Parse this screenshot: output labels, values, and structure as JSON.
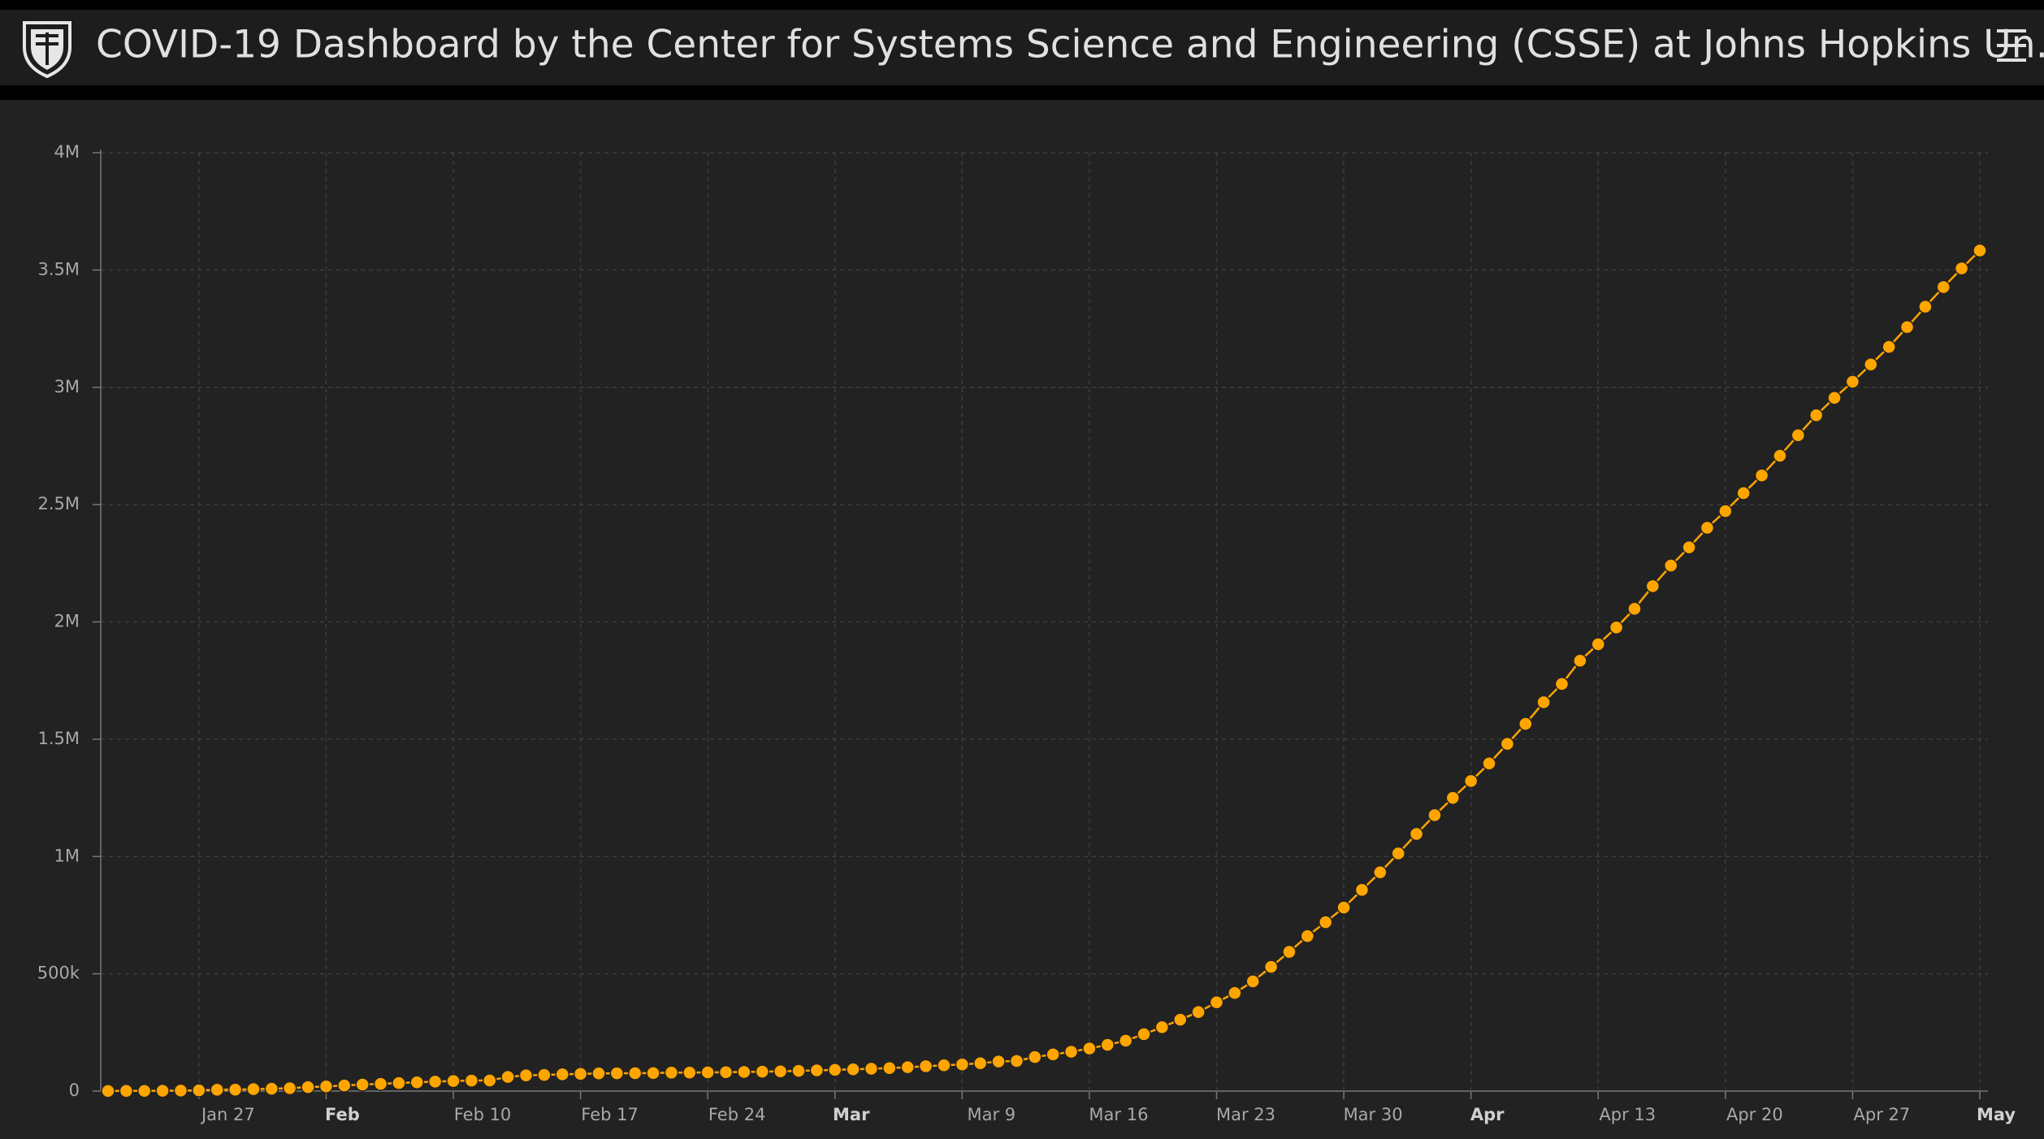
{
  "header": {
    "title": "COVID-19 Dashboard by the Center for Systems Science and Engineering (CSSE) at Johns Hopkins Un…"
  },
  "chart_data": {
    "type": "line",
    "color": "#ffa500",
    "grid": true,
    "x": [
      "Jan 22",
      "Jan 23",
      "Jan 24",
      "Jan 25",
      "Jan 26",
      "Jan 27",
      "Jan 28",
      "Jan 29",
      "Jan 30",
      "Jan 31",
      "Feb 1",
      "Feb 2",
      "Feb 3",
      "Feb 4",
      "Feb 5",
      "Feb 6",
      "Feb 7",
      "Feb 8",
      "Feb 9",
      "Feb 10",
      "Feb 11",
      "Feb 12",
      "Feb 13",
      "Feb 14",
      "Feb 15",
      "Feb 16",
      "Feb 17",
      "Feb 18",
      "Feb 19",
      "Feb 20",
      "Feb 21",
      "Feb 22",
      "Feb 23",
      "Feb 24",
      "Feb 25",
      "Feb 26",
      "Feb 27",
      "Feb 28",
      "Feb 29",
      "Mar 1",
      "Mar 2",
      "Mar 3",
      "Mar 4",
      "Mar 5",
      "Mar 6",
      "Mar 7",
      "Mar 8",
      "Mar 9",
      "Mar 10",
      "Mar 11",
      "Mar 12",
      "Mar 13",
      "Mar 14",
      "Mar 15",
      "Mar 16",
      "Mar 17",
      "Mar 18",
      "Mar 19",
      "Mar 20",
      "Mar 21",
      "Mar 22",
      "Mar 23",
      "Mar 24",
      "Mar 25",
      "Mar 26",
      "Mar 27",
      "Mar 28",
      "Mar 29",
      "Mar 30",
      "Mar 31",
      "Apr 1",
      "Apr 2",
      "Apr 3",
      "Apr 4",
      "Apr 5",
      "Apr 6",
      "Apr 7",
      "Apr 8",
      "Apr 9",
      "Apr 10",
      "Apr 11",
      "Apr 12",
      "Apr 13",
      "Apr 14",
      "Apr 15",
      "Apr 16",
      "Apr 17",
      "Apr 18",
      "Apr 19",
      "Apr 20",
      "Apr 21",
      "Apr 22",
      "Apr 23",
      "Apr 24",
      "Apr 25",
      "Apr 26",
      "Apr 27",
      "Apr 28",
      "Apr 29",
      "Apr 30",
      "May 1",
      "May 2",
      "May 3",
      "May 4"
    ],
    "values": [
      555,
      654,
      941,
      1434,
      2118,
      2927,
      5578,
      6166,
      8234,
      9927,
      12038,
      16787,
      19881,
      23892,
      27635,
      30794,
      34391,
      37120,
      40150,
      42762,
      44802,
      45221,
      60368,
      66885,
      69030,
      71224,
      73258,
      75136,
      75639,
      76197,
      76819,
      78572,
      78958,
      79561,
      80406,
      81388,
      82746,
      84112,
      86011,
      88369,
      90306,
      92840,
      95120,
      97886,
      101801,
      105847,
      109821,
      113590,
      118620,
      125875,
      128352,
      145205,
      156101,
      167454,
      181574,
      197102,
      214821,
      242570,
      272208,
      304507,
      336953,
      378235,
      418045,
      467653,
      529591,
      593291,
      660706,
      720117,
      782365,
      857487,
      932605,
      1013157,
      1095917,
      1176060,
      1249754,
      1321481,
      1396476,
      1480202,
      1565278,
      1657526,
      1735650,
      1834721,
      1904838,
      1976191,
      2056054,
      2152437,
      2240190,
      2317758,
      2401378,
      2472259,
      2549123,
      2624090,
      2708403,
      2795731,
      2881140,
      2955033,
      3023722,
      3097229,
      3172287,
      3256846,
      3343777,
      3427343,
      3506729,
      3583055
    ],
    "xticks": [
      {
        "value": "Jan 27",
        "label": "Jan 27"
      },
      {
        "value": "Feb 3",
        "label": "Feb"
      },
      {
        "value": "Feb 10",
        "label": "Feb 10"
      },
      {
        "value": "Feb 17",
        "label": "Feb 17"
      },
      {
        "value": "Feb 24",
        "label": "Feb 24"
      },
      {
        "value": "Mar 2",
        "label": "Mar"
      },
      {
        "value": "Mar 9",
        "label": "Mar 9"
      },
      {
        "value": "Mar 16",
        "label": "Mar 16"
      },
      {
        "value": "Mar 23",
        "label": "Mar 23"
      },
      {
        "value": "Mar 30",
        "label": "Mar 30"
      },
      {
        "value": "Apr 6",
        "label": "Apr"
      },
      {
        "value": "Apr 13",
        "label": "Apr 13"
      },
      {
        "value": "Apr 20",
        "label": "Apr 20"
      },
      {
        "value": "Apr 27",
        "label": "Apr 27"
      },
      {
        "value": "May 4",
        "label": "May"
      }
    ],
    "ylim": [
      0,
      4000000
    ],
    "yticks": [
      0,
      {
        "value": 500000,
        "label": "500k"
      },
      {
        "value": 1000000,
        "label": "1M"
      },
      {
        "value": 1500000,
        "label": "1.5M"
      },
      {
        "value": 2000000,
        "label": "2M"
      },
      {
        "value": 2500000,
        "label": "2.5M"
      },
      {
        "value": 3000000,
        "label": "3M"
      },
      {
        "value": 3500000,
        "label": "3.5M"
      },
      {
        "value": 4000000,
        "label": "4M"
      }
    ]
  }
}
